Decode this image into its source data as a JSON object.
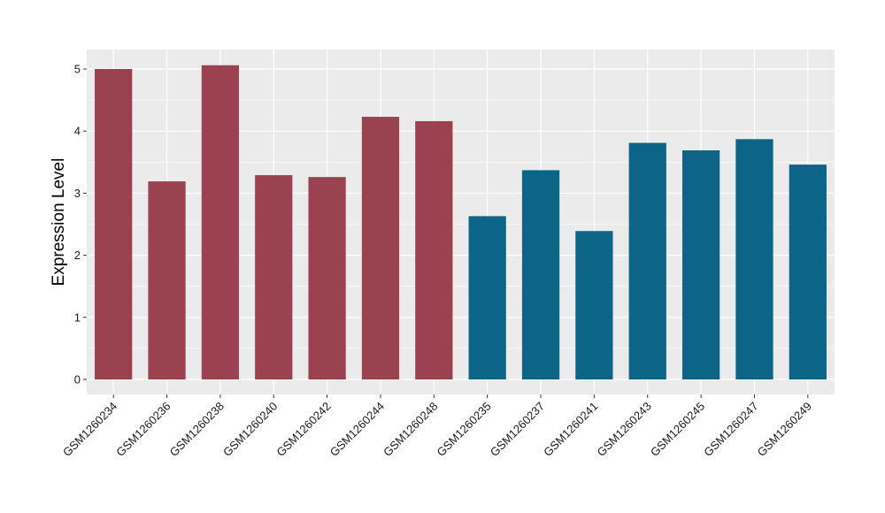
{
  "chart_data": {
    "type": "bar",
    "title": "",
    "xlabel": "",
    "ylabel": "Expression Level",
    "ylim": [
      0,
      5.25
    ],
    "y_ticks": [
      0,
      1,
      2,
      3,
      4,
      5
    ],
    "grid": true,
    "legend": "none",
    "categories": [
      "GSM1260234",
      "GSM1260236",
      "GSM1260238",
      "GSM1260240",
      "GSM1260242",
      "GSM1260244",
      "GSM1260248",
      "GSM1260235",
      "GSM1260237",
      "GSM1260241",
      "GSM1260243",
      "GSM1260245",
      "GSM1260247",
      "GSM1260249"
    ],
    "values": [
      5.0,
      3.19,
      5.06,
      3.29,
      3.26,
      4.23,
      4.16,
      2.63,
      3.37,
      2.39,
      3.81,
      3.69,
      3.87,
      3.46
    ],
    "groups": [
      "g1",
      "g1",
      "g1",
      "g1",
      "g1",
      "g1",
      "g1",
      "g2",
      "g2",
      "g2",
      "g2",
      "g2",
      "g2",
      "g2"
    ],
    "colors": {
      "g1": "#9a4250",
      "g2": "#0c6586",
      "panel": "#ebebeb",
      "grid": "#ffffff"
    }
  }
}
